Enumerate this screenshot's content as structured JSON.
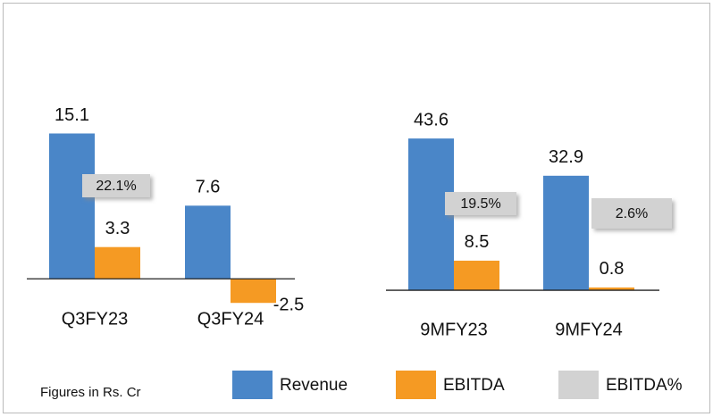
{
  "note": "Figures in Rs. Cr",
  "chart_data": [
    {
      "type": "bar",
      "categories": [
        "Q3FY23",
        "Q3FY24"
      ],
      "ylim": [
        -3.5,
        23.4
      ],
      "series": [
        {
          "name": "Revenue",
          "color": "#4a86c8",
          "values": [
            15.1,
            7.6
          ]
        },
        {
          "name": "EBITDA",
          "color": "#f59a23",
          "values": [
            3.3,
            -2.5
          ]
        },
        {
          "name": "EBITDA%",
          "color": "#d2d2d2",
          "values": [
            22.1,
            null
          ],
          "value_labels": [
            "22.1%",
            null
          ]
        }
      ]
    },
    {
      "type": "bar",
      "categories": [
        "9MFY23",
        "9MFY24"
      ],
      "ylim": [
        -6.4,
        68
      ],
      "series": [
        {
          "name": "Revenue",
          "color": "#4a86c8",
          "values": [
            43.6,
            32.9
          ]
        },
        {
          "name": "EBITDA",
          "color": "#f59a23",
          "values": [
            8.5,
            0.8
          ]
        },
        {
          "name": "EBITDA%",
          "color": "#d2d2d2",
          "values": [
            19.5,
            2.6
          ],
          "value_labels": [
            "19.5%",
            "2.6%"
          ]
        }
      ]
    }
  ]
}
